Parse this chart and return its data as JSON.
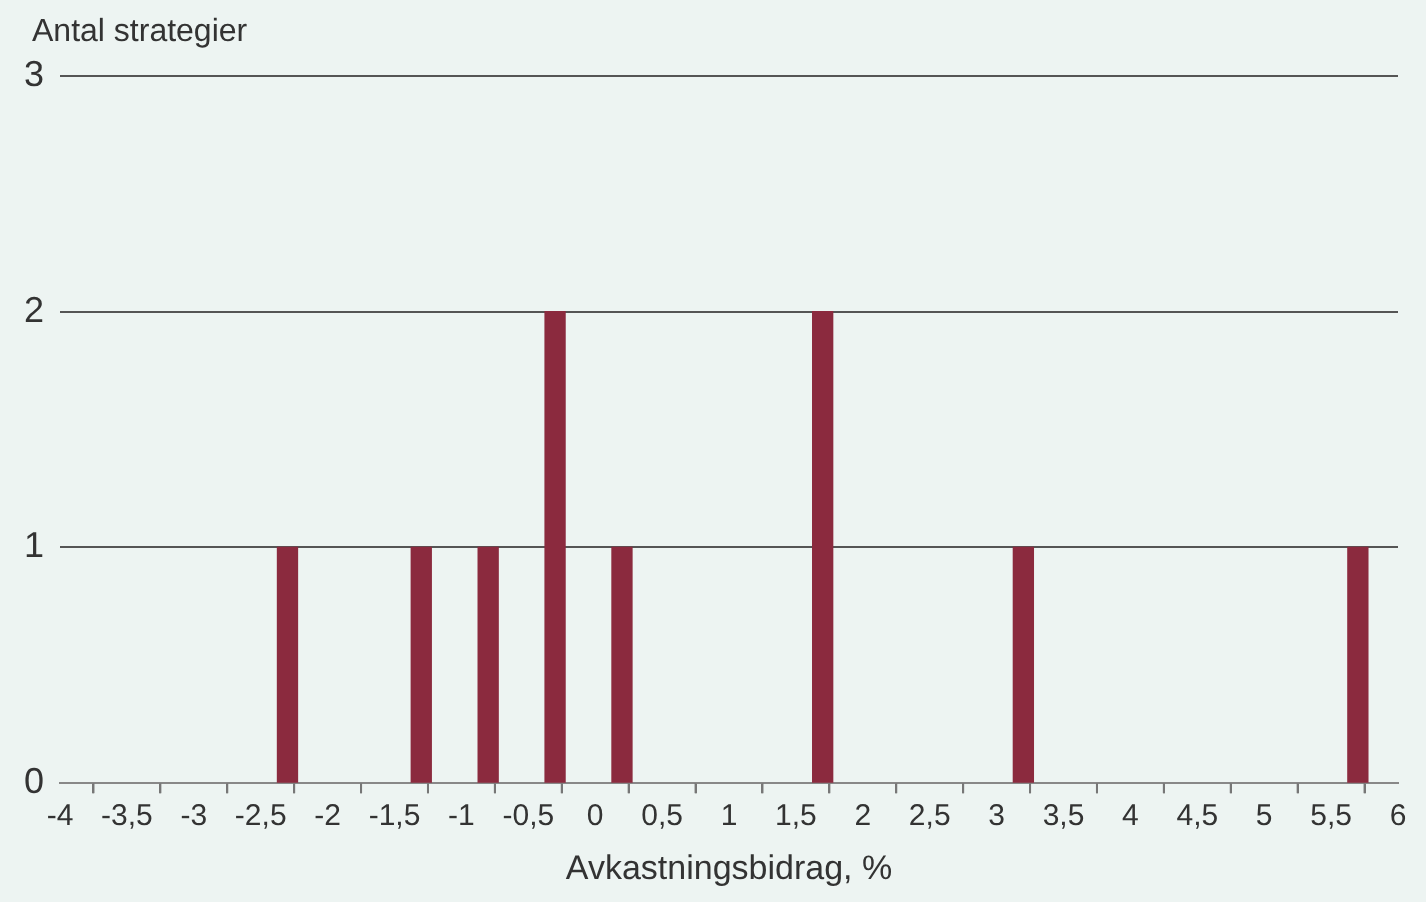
{
  "chart_data": {
    "type": "bar",
    "ylabel": "Antal strategier",
    "xlabel": "Avkastningsbidrag, %",
    "x": [
      -2.3,
      -1.3,
      -0.8,
      -0.3,
      0.2,
      1.7,
      3.2,
      5.7
    ],
    "values": [
      1,
      1,
      1,
      2,
      1,
      2,
      1,
      1
    ],
    "color": "#8b2a3e",
    "xlim": [
      -4,
      6
    ],
    "xticks": [
      -4,
      {
        "value": -3.5,
        "label": "-3,5"
      },
      -3,
      {
        "value": -2.5,
        "label": "-2,5"
      },
      -2,
      {
        "value": -1.5,
        "label": "-1,5"
      },
      -1,
      {
        "value": -0.5,
        "label": "-0,5"
      },
      0,
      {
        "value": 0.5,
        "label": "0,5"
      },
      1,
      {
        "value": 1.5,
        "label": "1,5"
      },
      2,
      {
        "value": 2.5,
        "label": "2,5"
      },
      3,
      {
        "value": 3.5,
        "label": "3,5"
      },
      4,
      {
        "value": 4.5,
        "label": "4,5"
      },
      5,
      {
        "value": 5.5,
        "label": "5,5"
      },
      6
    ],
    "ylim": [
      0,
      3
    ],
    "yticks": [
      0,
      1,
      2,
      3
    ],
    "grid": "y"
  }
}
